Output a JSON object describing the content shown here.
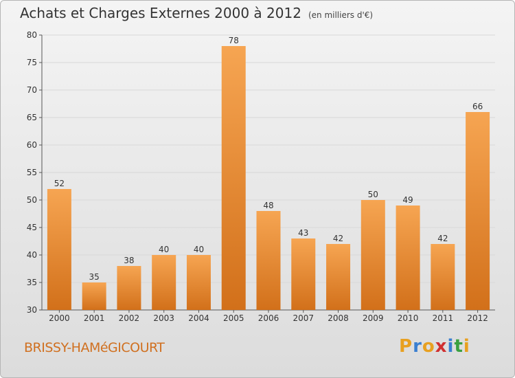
{
  "title": "Achats et Charges Externes 2000 à 2012",
  "unit": "(en milliers d'€)",
  "commune": "BRISSY-HAMéGICOURT",
  "logo": {
    "letters": [
      "P",
      "r",
      "o",
      "x",
      "i",
      "t",
      "i"
    ],
    "colors": [
      "#e8a020",
      "#3a7fd0",
      "#e8a020",
      "#d03030",
      "#3a7fd0",
      "#3aa040",
      "#e8a020"
    ]
  },
  "colors": {
    "bar_top": "#f6a552",
    "bar_bottom": "#d2701a",
    "grid": "#d8d8d8"
  },
  "chart_data": {
    "type": "bar",
    "categories": [
      "2000",
      "2001",
      "2002",
      "2003",
      "2004",
      "2005",
      "2006",
      "2007",
      "2008",
      "2009",
      "2010",
      "2011",
      "2012"
    ],
    "values": [
      52,
      35,
      38,
      40,
      40,
      78,
      48,
      43,
      42,
      50,
      49,
      42,
      66
    ],
    "ylim": [
      30,
      80
    ],
    "yticks": [
      30,
      35,
      40,
      45,
      50,
      55,
      60,
      65,
      70,
      75,
      80
    ],
    "grid": true,
    "title": "Achats et Charges Externes 2000 à 2012",
    "xlabel": "",
    "ylabel": ""
  }
}
